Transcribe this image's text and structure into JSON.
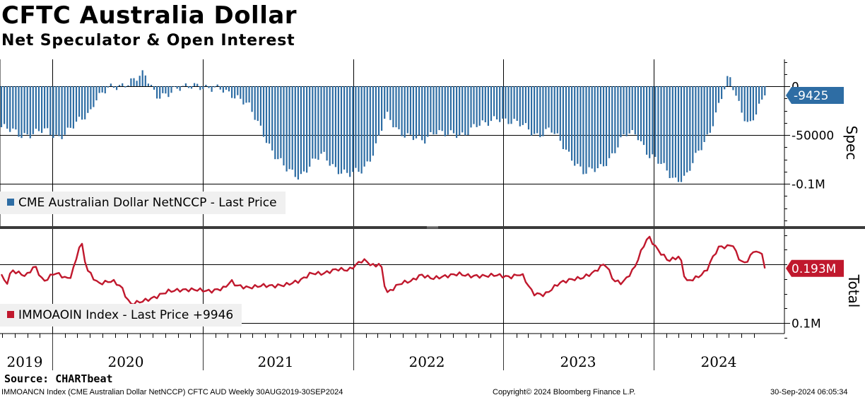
{
  "title": "CFTC Australia Dollar",
  "subtitle": "Net Speculator & Open Interest",
  "source": "Source: CHARTbeat",
  "footer": {
    "left": "IMMOANCN Index (CME Australian Dollar NetNCCP) CFTC AUD  Weekly 30AUG2019-30SEP2024",
    "center": "Copyright© 2024 Bloomberg Finance L.P.",
    "right": "30-Sep-2024 06:05:34"
  },
  "colors": {
    "spec": "#2e6da4",
    "total": "#c0182d",
    "label_spec_bg": "#2e6da4",
    "label_total_bg": "#c0182d"
  },
  "chart_data": [
    {
      "type": "bar",
      "panel": "top",
      "axis_title": "Spec",
      "series_name": "CME Australian Dollar NetNCCP - Last Price",
      "last_value": -9425,
      "last_label": "-9425",
      "y_ticks": [
        {
          "v": 0,
          "label": "0"
        },
        {
          "v": -50000,
          "label": "-50000"
        },
        {
          "v": -100000,
          "label": "-0.1M"
        }
      ],
      "ylim": [
        -125000,
        30000
      ],
      "x_year_labels": [
        "2019",
        "2020",
        "2021",
        "2022",
        "2023",
        "2024"
      ],
      "x_range": [
        "2019-08-30",
        "2024-09-30"
      ],
      "keypoints": [
        [
          "2019-08-30",
          -42000
        ],
        [
          "2019-10-15",
          -50000
        ],
        [
          "2019-12-10",
          -46000
        ],
        [
          "2020-01-14",
          -52000
        ],
        [
          "2020-02-25",
          -40000
        ],
        [
          "2020-03-31",
          -28000
        ],
        [
          "2020-04-14",
          -12000
        ],
        [
          "2020-05-12",
          -3000
        ],
        [
          "2020-06-09",
          -2000
        ],
        [
          "2020-07-14",
          8000
        ],
        [
          "2020-08-11",
          12000
        ],
        [
          "2020-09-08",
          -10000
        ],
        [
          "2020-10-13",
          -6000
        ],
        [
          "2020-11-17",
          -2000
        ],
        [
          "2020-12-15",
          3000
        ],
        [
          "2021-01-19",
          -4000
        ],
        [
          "2021-02-16",
          -3000
        ],
        [
          "2021-03-16",
          -8000
        ],
        [
          "2021-04-20",
          -20000
        ],
        [
          "2021-05-25",
          -45000
        ],
        [
          "2021-06-22",
          -70000
        ],
        [
          "2021-07-20",
          -85000
        ],
        [
          "2021-08-24",
          -92000
        ],
        [
          "2021-09-21",
          -80000
        ],
        [
          "2021-10-19",
          -70000
        ],
        [
          "2021-11-23",
          -85000
        ],
        [
          "2021-12-21",
          -92000
        ],
        [
          "2022-01-25",
          -85000
        ],
        [
          "2022-02-22",
          -65000
        ],
        [
          "2022-03-22",
          -30000
        ],
        [
          "2022-04-19",
          -45000
        ],
        [
          "2022-05-24",
          -52000
        ],
        [
          "2022-06-21",
          -58000
        ],
        [
          "2022-07-19",
          -44000
        ],
        [
          "2022-08-23",
          -50000
        ],
        [
          "2022-09-20",
          -52000
        ],
        [
          "2022-10-25",
          -38000
        ],
        [
          "2022-11-22",
          -40000
        ],
        [
          "2022-12-20",
          -32000
        ],
        [
          "2023-01-24",
          -36000
        ],
        [
          "2023-02-21",
          -42000
        ],
        [
          "2023-03-21",
          -50000
        ],
        [
          "2023-04-25",
          -44000
        ],
        [
          "2023-05-23",
          -60000
        ],
        [
          "2023-06-20",
          -75000
        ],
        [
          "2023-07-18",
          -90000
        ],
        [
          "2023-08-22",
          -84000
        ],
        [
          "2023-09-19",
          -72000
        ],
        [
          "2023-10-24",
          -50000
        ],
        [
          "2023-11-21",
          -48000
        ],
        [
          "2023-12-19",
          -70000
        ],
        [
          "2024-01-23",
          -82000
        ],
        [
          "2024-02-20",
          -95000
        ],
        [
          "2024-03-19",
          -94000
        ],
        [
          "2024-04-16",
          -70000
        ],
        [
          "2024-05-14",
          -48000
        ],
        [
          "2024-06-11",
          -15000
        ],
        [
          "2024-07-02",
          10000
        ],
        [
          "2024-07-30",
          -22000
        ],
        [
          "2024-08-20",
          -40000
        ],
        [
          "2024-09-10",
          -25000
        ],
        [
          "2024-09-30",
          -9425
        ]
      ]
    },
    {
      "type": "line",
      "panel": "bottom",
      "axis_title": "Total",
      "series_name": "IMMOAOIN Index - Last Price +9946",
      "last_value": 193000,
      "last_label": "0.193M",
      "y_ticks": [
        {
          "v": 100000,
          "label": "0.1M"
        }
      ],
      "ylim": [
        75000,
        300000
      ],
      "x_year_labels": [
        "2019",
        "2020",
        "2021",
        "2022",
        "2023",
        "2024"
      ],
      "x_range": [
        "2019-08-30",
        "2024-09-30"
      ],
      "keypoints": [
        [
          "2019-08-30",
          183000
        ],
        [
          "2019-09-10",
          164000
        ],
        [
          "2019-09-24",
          190000
        ],
        [
          "2019-10-29",
          180000
        ],
        [
          "2019-11-19",
          198000
        ],
        [
          "2019-12-10",
          170000
        ],
        [
          "2020-01-07",
          186000
        ],
        [
          "2020-02-11",
          174000
        ],
        [
          "2020-02-25",
          200000
        ],
        [
          "2020-03-10",
          243000
        ],
        [
          "2020-03-24",
          192000
        ],
        [
          "2020-04-21",
          167000
        ],
        [
          "2020-05-26",
          172000
        ],
        [
          "2020-06-16",
          162000
        ],
        [
          "2020-07-07",
          132000
        ],
        [
          "2020-08-11",
          138000
        ],
        [
          "2020-09-08",
          144000
        ],
        [
          "2020-10-06",
          154000
        ],
        [
          "2020-11-03",
          156000
        ],
        [
          "2020-12-15",
          157000
        ],
        [
          "2021-01-19",
          154000
        ],
        [
          "2021-02-23",
          160000
        ],
        [
          "2021-03-09",
          172000
        ],
        [
          "2021-03-23",
          164000
        ],
        [
          "2021-04-20",
          160000
        ],
        [
          "2021-05-25",
          164000
        ],
        [
          "2021-06-22",
          163000
        ],
        [
          "2021-07-20",
          165000
        ],
        [
          "2021-08-24",
          172000
        ],
        [
          "2021-09-21",
          185000
        ],
        [
          "2021-10-19",
          184000
        ],
        [
          "2021-11-23",
          192000
        ],
        [
          "2021-12-21",
          190000
        ],
        [
          "2022-01-25",
          208000
        ],
        [
          "2022-02-22",
          196000
        ],
        [
          "2022-03-08",
          204000
        ],
        [
          "2022-03-22",
          150000
        ],
        [
          "2022-04-26",
          168000
        ],
        [
          "2022-05-24",
          172000
        ],
        [
          "2022-06-14",
          182000
        ],
        [
          "2022-07-12",
          176000
        ],
        [
          "2022-08-16",
          180000
        ],
        [
          "2022-09-13",
          184000
        ],
        [
          "2022-10-11",
          180000
        ],
        [
          "2022-11-15",
          180000
        ],
        [
          "2022-12-13",
          182000
        ],
        [
          "2023-01-17",
          178000
        ],
        [
          "2023-02-14",
          184000
        ],
        [
          "2023-03-14",
          150000
        ],
        [
          "2023-04-11",
          148000
        ],
        [
          "2023-05-16",
          168000
        ],
        [
          "2023-06-13",
          174000
        ],
        [
          "2023-07-11",
          177000
        ],
        [
          "2023-08-08",
          186000
        ],
        [
          "2023-09-05",
          202000
        ],
        [
          "2023-09-26",
          172000
        ],
        [
          "2023-10-17",
          168000
        ],
        [
          "2023-11-14",
          192000
        ],
        [
          "2023-12-05",
          228000
        ],
        [
          "2023-12-19",
          248000
        ],
        [
          "2024-01-09",
          226000
        ],
        [
          "2024-02-06",
          206000
        ],
        [
          "2024-03-05",
          214000
        ],
        [
          "2024-03-19",
          170000
        ],
        [
          "2024-04-16",
          178000
        ],
        [
          "2024-05-07",
          188000
        ],
        [
          "2024-05-28",
          218000
        ],
        [
          "2024-06-11",
          232000
        ],
        [
          "2024-06-25",
          228000
        ],
        [
          "2024-07-09",
          236000
        ],
        [
          "2024-07-23",
          214000
        ],
        [
          "2024-08-06",
          200000
        ],
        [
          "2024-08-20",
          210000
        ],
        [
          "2024-09-03",
          226000
        ],
        [
          "2024-09-17",
          214000
        ],
        [
          "2024-09-24",
          228000
        ],
        [
          "2024-09-30",
          193000
        ]
      ]
    }
  ]
}
